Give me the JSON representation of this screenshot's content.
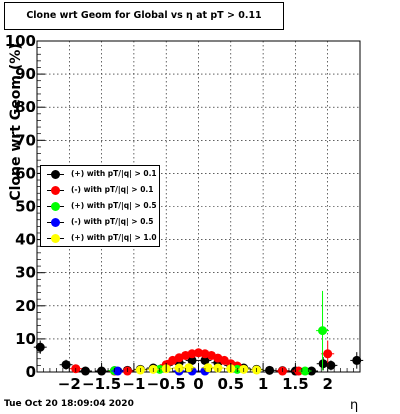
{
  "title": "Clone wrt Geom for Global vs   η at pT > 0.11",
  "footer": "Tue Oct 20 18:09:04 2020",
  "chart_data": {
    "type": "scatter",
    "title": "Clone wrt Geom for Global vs   η at pT > 0.11",
    "xlabel": "η",
    "ylabel": "Clone wrt Geom (%)",
    "xlim": [
      -2.5,
      2.5
    ],
    "ylim": [
      0,
      100
    ],
    "x_ticks": [
      -2,
      -1.5,
      -1,
      -0.5,
      0,
      0.5,
      1,
      1.5,
      2
    ],
    "x_tick_labels": [
      "−2",
      "−1.5",
      "−1",
      "−0.5",
      "0",
      "0.5",
      "1",
      "1.5",
      "2"
    ],
    "y_ticks": [
      0,
      10,
      20,
      30,
      40,
      50,
      60,
      70,
      80,
      90,
      100
    ],
    "y_tick_labels": [
      "0",
      "10",
      "20",
      "30",
      "40",
      "50",
      "60",
      "70",
      "80",
      "90",
      "100"
    ],
    "grid": true,
    "legend_position": "middle-left",
    "series": [
      {
        "name": "(+) with pT/|q| > 0.1",
        "color": "#000000",
        "points": [
          {
            "x": -2.45,
            "y": 7.5,
            "err": 2.0
          },
          {
            "x": -2.05,
            "y": 2.2,
            "err": 1.5
          },
          {
            "x": -1.75,
            "y": 0.3,
            "err": 0.8
          },
          {
            "x": -1.5,
            "y": 0.3
          },
          {
            "x": -1.3,
            "y": 0.4
          },
          {
            "x": -1.1,
            "y": 0.5
          },
          {
            "x": -0.9,
            "y": 0.8
          },
          {
            "x": -0.7,
            "y": 1.2
          },
          {
            "x": -0.5,
            "y": 2.0
          },
          {
            "x": -0.3,
            "y": 2.8
          },
          {
            "x": -0.1,
            "y": 3.5
          },
          {
            "x": 0.1,
            "y": 3.5
          },
          {
            "x": 0.3,
            "y": 2.8
          },
          {
            "x": 0.5,
            "y": 2.0
          },
          {
            "x": 0.7,
            "y": 1.2
          },
          {
            "x": 0.9,
            "y": 0.8
          },
          {
            "x": 1.1,
            "y": 0.5
          },
          {
            "x": 1.3,
            "y": 0.4
          },
          {
            "x": 1.5,
            "y": 0.3
          },
          {
            "x": 1.75,
            "y": 0.3,
            "err": 0.8
          },
          {
            "x": 1.93,
            "y": 2.5,
            "err": 2.0
          },
          {
            "x": 2.05,
            "y": 2.0,
            "err": 1.5
          },
          {
            "x": 2.45,
            "y": 3.5,
            "err": 2.5
          }
        ]
      },
      {
        "name": "(-) with pT/|q| > 0.1",
        "color": "#ff0000",
        "points": [
          {
            "x": -1.9,
            "y": 1.0
          },
          {
            "x": -1.3,
            "y": 0.3
          },
          {
            "x": -1.1,
            "y": 0.3
          },
          {
            "x": -0.5,
            "y": 2.2
          },
          {
            "x": -0.4,
            "y": 3.5
          },
          {
            "x": -0.3,
            "y": 4.3
          },
          {
            "x": -0.2,
            "y": 5.0
          },
          {
            "x": -0.1,
            "y": 5.5
          },
          {
            "x": 0.0,
            "y": 5.8
          },
          {
            "x": 0.1,
            "y": 5.5
          },
          {
            "x": 0.2,
            "y": 5.0
          },
          {
            "x": 0.3,
            "y": 4.2
          },
          {
            "x": 0.4,
            "y": 3.5
          },
          {
            "x": 0.5,
            "y": 2.5
          },
          {
            "x": 0.6,
            "y": 1.8
          },
          {
            "x": 1.3,
            "y": 0.3
          },
          {
            "x": 1.55,
            "y": 0.3
          },
          {
            "x": 2.0,
            "y": 5.5,
            "err": 4.0
          }
        ]
      },
      {
        "name": "(+) with pT/|q| > 0.5",
        "color": "#00ff00",
        "points": [
          {
            "x": -1.3,
            "y": 0.4
          },
          {
            "x": -0.6,
            "y": 0.8
          },
          {
            "x": 0.6,
            "y": 0.8
          },
          {
            "x": 1.65,
            "y": 0.3
          },
          {
            "x": 1.92,
            "y": 12.5,
            "err": 12.0
          }
        ]
      },
      {
        "name": "(-) with pT/|q| > 0.5",
        "color": "#0000ff",
        "points": [
          {
            "x": -1.25,
            "y": 0.3
          },
          {
            "x": -0.3,
            "y": 0.3
          },
          {
            "x": -0.1,
            "y": 0.3
          },
          {
            "x": 0.1,
            "y": 0.3
          }
        ]
      },
      {
        "name": "(+) with pT/|q| > 1.0",
        "color": "#ffff00",
        "points": [
          {
            "x": -0.9,
            "y": 0.6
          },
          {
            "x": -0.7,
            "y": 0.8
          },
          {
            "x": -0.5,
            "y": 1.0
          },
          {
            "x": -0.3,
            "y": 1.2
          },
          {
            "x": -0.15,
            "y": 1.3
          },
          {
            "x": 0.15,
            "y": 1.3
          },
          {
            "x": 0.3,
            "y": 1.2
          },
          {
            "x": 0.5,
            "y": 1.0
          },
          {
            "x": 0.7,
            "y": 0.8
          },
          {
            "x": 0.9,
            "y": 0.6
          }
        ]
      }
    ]
  }
}
